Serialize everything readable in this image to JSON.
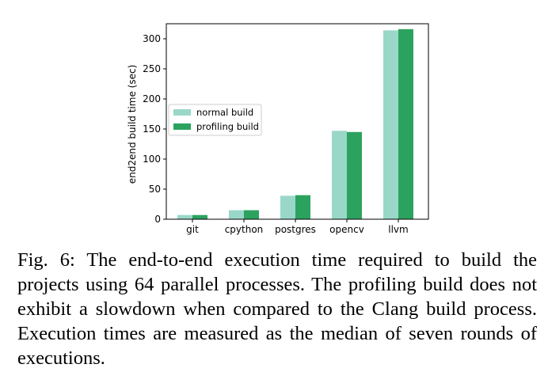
{
  "chart_data": {
    "type": "bar",
    "categories": [
      "git",
      "cpython",
      "postgres",
      "opencv",
      "llvm"
    ],
    "series": [
      {
        "name": "normal build",
        "values": [
          7,
          15,
          39,
          147,
          314
        ],
        "color": "#99d8c9"
      },
      {
        "name": "profiling build",
        "values": [
          7,
          15,
          40,
          145,
          316
        ],
        "color": "#2ca25f"
      }
    ],
    "ylabel": "end2end build time (sec)",
    "xlabel": "",
    "ylim": [
      0,
      325
    ],
    "yticks": [
      0,
      50,
      100,
      150,
      200,
      250,
      300
    ],
    "grid": false,
    "legend_position": "center-left"
  },
  "caption": "Fig. 6: The end-to-end execution time required to build the projects using 64 parallel processes. The profiling build does not exhibit a slowdown when compared to the Clang build process. Execution times are measured as the median of seven rounds of executions."
}
